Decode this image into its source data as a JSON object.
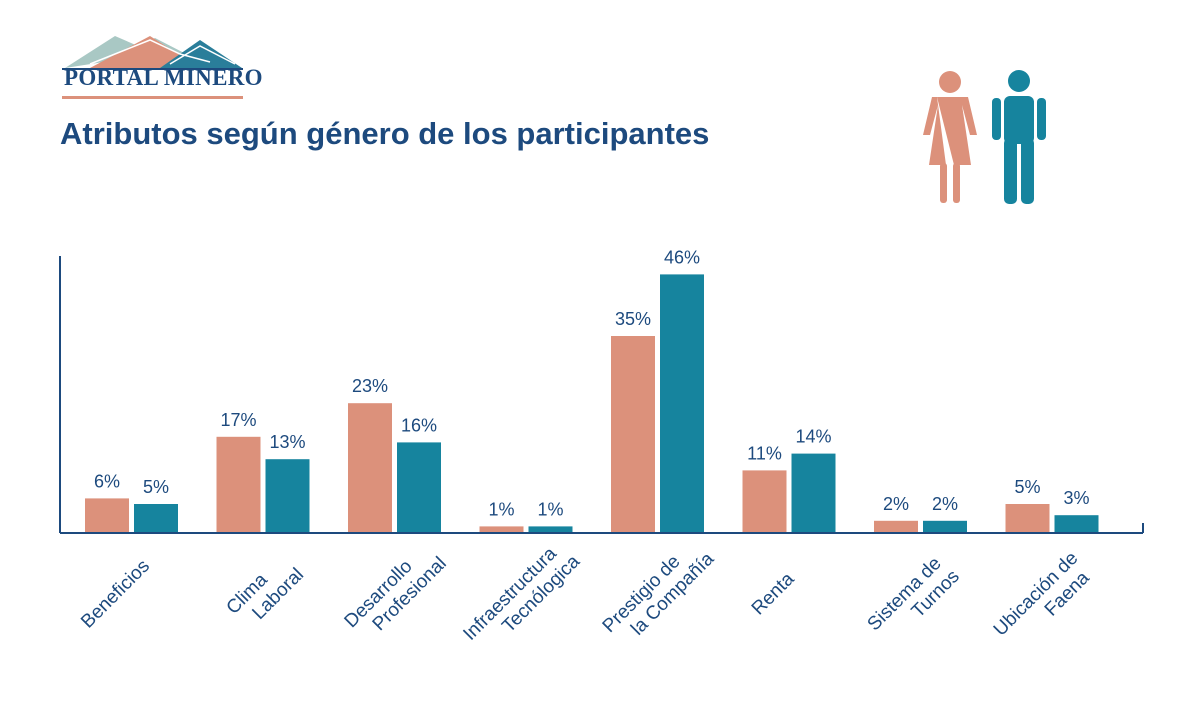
{
  "header": {
    "logo_text": "PORTAL MINERO",
    "title": "Atributos según género de los participantes"
  },
  "icons": {
    "female": "woman-icon",
    "male": "man-icon"
  },
  "colors": {
    "female": "#dc917b",
    "male": "#16849e",
    "axis": "#1d4a7e",
    "text": "#1d4a7e"
  },
  "chart_data": {
    "type": "bar",
    "title": "Atributos según género de los participantes",
    "xlabel": "",
    "ylabel": "",
    "ylim": [
      0,
      50
    ],
    "grid": false,
    "legend": "icons top-right",
    "categories": [
      [
        "Beneficios"
      ],
      [
        "Clima",
        "Laboral"
      ],
      [
        "Desarrollo",
        "Profesional"
      ],
      [
        "Infraestructura",
        "Tecnólogica"
      ],
      [
        "Prestigio de",
        "la Compañía"
      ],
      [
        "Renta"
      ],
      [
        "Sistema de",
        "Turnos"
      ],
      [
        "Ubicación de",
        "Faena"
      ]
    ],
    "series": [
      {
        "color": "#dc917b",
        "values": [
          6,
          17,
          23,
          1,
          35,
          11,
          2,
          5
        ],
        "labels": [
          "6%",
          "17%",
          "23%",
          "1%",
          "35%",
          "11%",
          "2%",
          "5%"
        ]
      },
      {
        "color": "#16849e",
        "values": [
          5,
          13,
          16,
          1,
          46,
          14,
          2,
          3
        ],
        "labels": [
          "5%",
          "13%",
          "16%",
          "1%",
          "46%",
          "14%",
          "2%",
          "3%"
        ]
      }
    ]
  }
}
